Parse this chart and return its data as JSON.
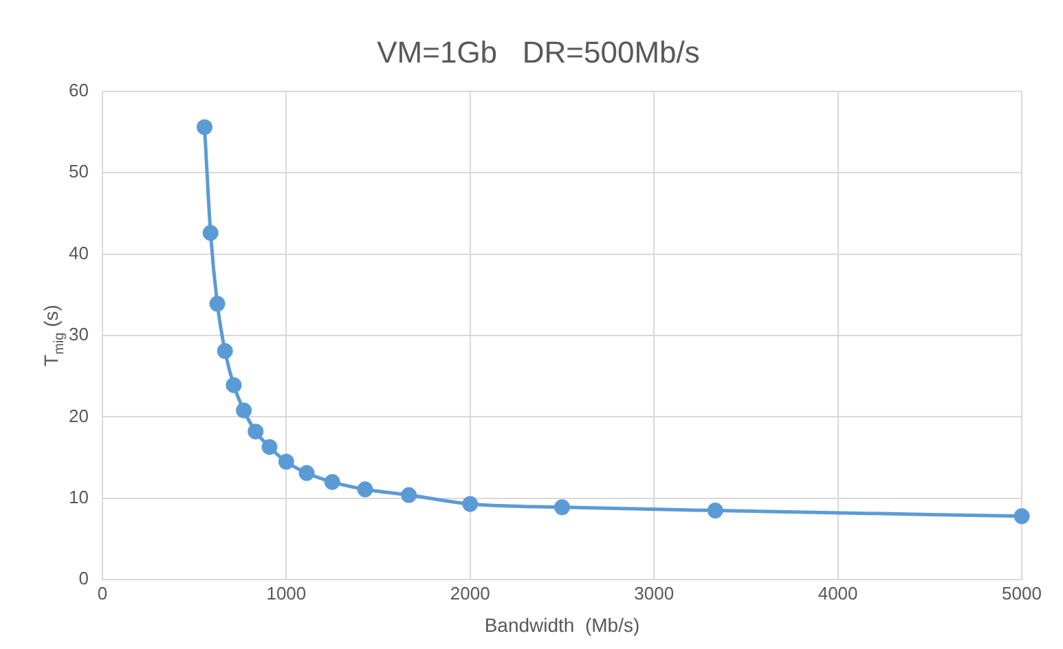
{
  "chart_data": {
    "type": "line",
    "title": "VM=1Gb   DR=500Mb/s",
    "xlabel": "Bandwidth  (Mb/s)",
    "ylabel": "T$_{mig}$ (s)",
    "x": [
      555.6,
      588.2,
      625,
      666.7,
      714.3,
      769.2,
      833.3,
      909.1,
      1000,
      1111.1,
      1250,
      1428.6,
      1666.7,
      2000,
      2500,
      3333.3,
      5000
    ],
    "series": [
      {
        "color": "#5b9bd5",
        "values": [
          55.6,
          42.6,
          33.9,
          28.1,
          23.9,
          20.8,
          18.2,
          16.3,
          14.5,
          13.1,
          12.0,
          11.1,
          10.4,
          9.3,
          8.9,
          8.5,
          7.8
        ]
      }
    ],
    "xlim": [
      0,
      5000
    ],
    "xticks": [
      0,
      1000,
      2000,
      3000,
      4000,
      5000
    ],
    "ylim": [
      0,
      60
    ],
    "yticks": [
      0,
      10,
      20,
      30,
      40,
      50,
      60
    ],
    "grid": true,
    "legend": false,
    "marker": "circle",
    "line_style": "solid"
  }
}
